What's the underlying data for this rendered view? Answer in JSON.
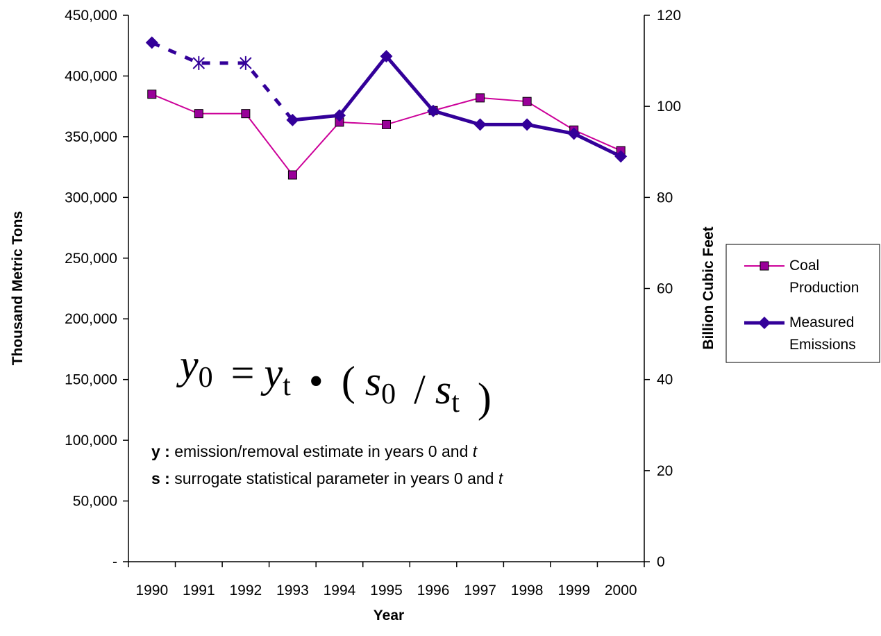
{
  "chart_data": {
    "type": "line",
    "x_label": "Year",
    "y_label": "Thousand Metric Tons",
    "y2_label": "Billion Cubic Feet",
    "categories": [
      "1990",
      "1991",
      "1992",
      "1993",
      "1994",
      "1995",
      "1996",
      "1997",
      "1998",
      "1999",
      "2000"
    ],
    "series": [
      {
        "name": "Coal Production",
        "color": "#cc0099",
        "marker_color": "#990099",
        "marker": "square",
        "values": [
          385000,
          369000,
          369000,
          318500,
          362000,
          360000,
          371500,
          382000,
          379000,
          355500,
          338500
        ]
      },
      {
        "name": "Measured Emissions",
        "color": "#330099",
        "marker_color": "#330099",
        "marker": "diamond",
        "axis": "y2",
        "values": [
          114,
          null,
          null,
          97,
          98,
          111,
          99,
          96,
          96,
          94,
          89
        ]
      },
      {
        "color": "#330099",
        "marker": "asterisk",
        "axis": "y2",
        "dashed": true,
        "values": [
          114,
          109.5,
          109.5,
          97,
          null,
          null,
          null,
          null,
          null,
          null,
          null
        ]
      }
    ],
    "ylim": [
      0,
      450000
    ],
    "yticks": [
      {
        "value": 0,
        "label": "-"
      },
      {
        "value": 50000,
        "label": "50,000"
      },
      {
        "value": 100000,
        "label": "100,000"
      },
      {
        "value": 150000,
        "label": "150,000"
      },
      {
        "value": 200000,
        "label": "200,000"
      },
      {
        "value": 250000,
        "label": "250,000"
      },
      {
        "value": 300000,
        "label": "300,000"
      },
      {
        "value": 350000,
        "label": "350,000"
      },
      {
        "value": 400000,
        "label": "400,000"
      },
      {
        "value": 450000,
        "label": "450,000"
      }
    ],
    "y2lim": [
      0,
      120
    ],
    "y2ticks": [
      0,
      20,
      40,
      60,
      80,
      100,
      120
    ],
    "formula": [
      [
        "y",
        "0"
      ],
      "=",
      [
        "y",
        "t"
      ],
      "•",
      "(",
      [
        "s",
        "0"
      ],
      "/",
      [
        "s",
        "t"
      ],
      ")"
    ],
    "notes": [
      {
        "symbol": "y :",
        "text": " emission/removal estimate in years 0 and ",
        "var": "t"
      },
      {
        "symbol": "s :",
        "text": " surrogate statistical parameter in years 0 and ",
        "var": "t"
      }
    ],
    "legend": "right"
  }
}
